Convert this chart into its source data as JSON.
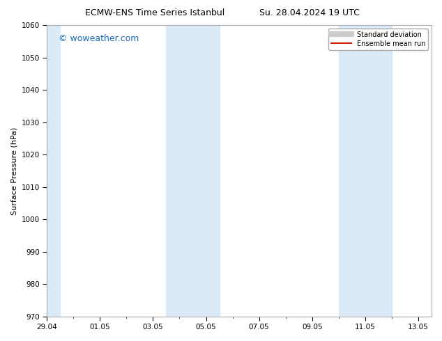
{
  "title_left": "ECMW-ENS Time Series Istanbul",
  "title_right": "Su. 28.04.2024 19 UTC",
  "ylabel": "Surface Pressure (hPa)",
  "ylim": [
    970,
    1060
  ],
  "yticks": [
    970,
    980,
    990,
    1000,
    1010,
    1020,
    1030,
    1040,
    1050,
    1060
  ],
  "xlim_start": 0.0,
  "xlim_end": 14.5,
  "xtick_labels": [
    "29.04",
    "01.05",
    "03.05",
    "05.05",
    "07.05",
    "09.05",
    "11.05",
    "13.05"
  ],
  "xtick_positions": [
    0.0,
    2.0,
    4.0,
    6.0,
    8.0,
    10.0,
    12.0,
    14.0
  ],
  "shaded_bands": [
    {
      "x_start": -0.1,
      "x_end": 0.5
    },
    {
      "x_start": 4.5,
      "x_end": 6.5
    },
    {
      "x_start": 11.0,
      "x_end": 13.0
    }
  ],
  "shaded_color": "#daeaf7",
  "watermark_text": "© woweather.com",
  "watermark_color": "#1a6bbf",
  "legend_items": [
    {
      "label": "Standard deviation",
      "color": "#cccccc",
      "lw": 6,
      "linestyle": "-"
    },
    {
      "label": "Ensemble mean run",
      "color": "#cc2200",
      "lw": 1.5,
      "linestyle": "-"
    }
  ],
  "bg_color": "#ffffff",
  "grid_color": "#dddddd",
  "title_fontsize": 9,
  "axis_label_fontsize": 8,
  "tick_fontsize": 7.5,
  "watermark_fontsize": 9,
  "legend_fontsize": 7
}
